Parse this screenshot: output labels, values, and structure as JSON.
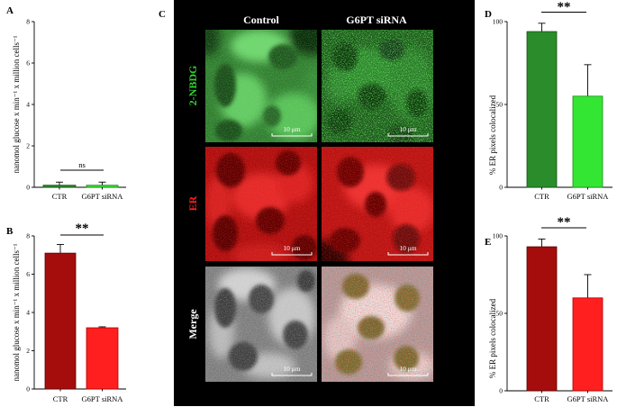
{
  "chart_data": [
    {
      "panel_label": "A",
      "type": "bar",
      "categories": [
        "CTR",
        "G6PT siRNA"
      ],
      "values": [
        0.1,
        0.1
      ],
      "error": [
        0.15,
        0.15
      ],
      "ylabel": "nanomol glucose x min⁻¹ x million cells⁻¹",
      "ylim": [
        0,
        8
      ],
      "yticks": [
        0,
        2,
        4,
        6,
        8
      ],
      "significance": "ns",
      "colors": [
        "#2a8c2a",
        "#33e633"
      ],
      "edge_colors": [
        "#145214",
        "#1a8a1a"
      ]
    },
    {
      "panel_label": "B",
      "type": "bar",
      "categories": [
        "CTR",
        "G6PT siRNA"
      ],
      "values": [
        7.1,
        3.2
      ],
      "error": [
        0.45,
        0.05
      ],
      "ylabel": "nanomol glucose x min⁻¹ x million cells⁻¹",
      "ylim": [
        0,
        8
      ],
      "yticks": [
        0,
        2,
        4,
        6,
        8
      ],
      "significance": "**",
      "colors": [
        "#a50d0d",
        "#ff1f1f"
      ],
      "edge_colors": [
        "#5a0000",
        "#b00000"
      ]
    },
    {
      "panel_label": "D",
      "type": "bar",
      "categories": [
        "CTR",
        "G6PT siRNA"
      ],
      "values": [
        94,
        55
      ],
      "error": [
        5,
        19
      ],
      "ylabel": "% ER pixels colocalized",
      "ylim": [
        0,
        100
      ],
      "yticks": [
        0,
        50,
        100
      ],
      "significance": "**",
      "colors": [
        "#2a8c2a",
        "#33e633"
      ],
      "edge_colors": [
        "#145214",
        "#1a8a1a"
      ]
    },
    {
      "panel_label": "E",
      "type": "bar",
      "categories": [
        "CTR",
        "G6PT siRNA"
      ],
      "values": [
        93,
        60
      ],
      "error": [
        5,
        15
      ],
      "ylabel": "% ER pixels colocalized",
      "ylim": [
        0,
        100
      ],
      "yticks": [
        0,
        50,
        100
      ],
      "significance": "**",
      "colors": [
        "#a50d0d",
        "#ff1f1f"
      ],
      "edge_colors": [
        "#5a0000",
        "#b00000"
      ]
    }
  ],
  "panel_c": {
    "label": "C",
    "columns": [
      "Control",
      "G6PT siRNA"
    ],
    "rows": [
      "2-NBDG",
      "ER",
      "Merge"
    ],
    "row_label_colors": [
      "#33d433",
      "#ff2020",
      "#ffffff"
    ],
    "scale_bar_label": "10 μm"
  }
}
